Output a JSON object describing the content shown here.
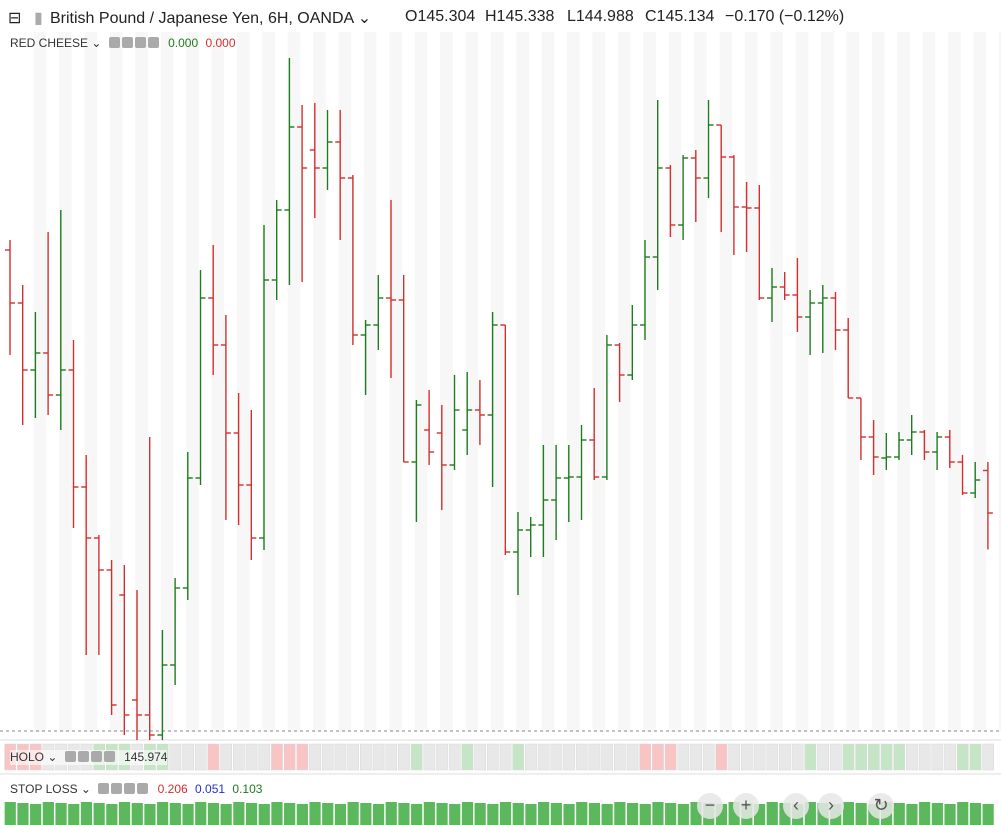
{
  "header": {
    "title": "British Pound / Japanese Yen, 6H, OANDA",
    "open": "O145.304",
    "high": "H145.338",
    "low": "L144.988",
    "close": "C145.134",
    "change": "−0.170 (−0.12%)"
  },
  "indicator": {
    "name": "RED CHEESE",
    "value1": "0.000",
    "value2": "0.000"
  },
  "holo": {
    "name": "HOLO",
    "value": "145.974",
    "cells": [
      "#f8c4c4",
      "#f8c4c4",
      "#f8c4c4",
      "#e8e8e8",
      "#e8e8e8",
      "#e8e8e8",
      "#e8e8e8",
      "#c6e5c6",
      "#c6e5c6",
      "#c6e5c6",
      "#e8e8e8",
      "#c6e5c6",
      "#c6e5c6",
      "#e8e8e8",
      "#e8e8e8",
      "#e8e8e8",
      "#f8c4c4",
      "#e8e8e8",
      "#e8e8e8",
      "#e8e8e8",
      "#e8e8e8",
      "#f8c4c4",
      "#f8c4c4",
      "#f8c4c4",
      "#e8e8e8",
      "#e8e8e8",
      "#e8e8e8",
      "#e8e8e8",
      "#e8e8e8",
      "#e8e8e8",
      "#e8e8e8",
      "#e8e8e8",
      "#c6e5c6",
      "#e8e8e8",
      "#e8e8e8",
      "#e8e8e8",
      "#c6e5c6",
      "#e8e8e8",
      "#e8e8e8",
      "#e8e8e8",
      "#c6e5c6",
      "#e8e8e8",
      "#e8e8e8",
      "#e8e8e8",
      "#e8e8e8",
      "#e8e8e8",
      "#e8e8e8",
      "#e8e8e8",
      "#e8e8e8",
      "#e8e8e8",
      "#f8c4c4",
      "#f8c4c4",
      "#f8c4c4",
      "#e8e8e8",
      "#e8e8e8",
      "#e8e8e8",
      "#f8c4c4",
      "#e8e8e8",
      "#e8e8e8",
      "#e8e8e8",
      "#e8e8e8",
      "#e8e8e8",
      "#e8e8e8",
      "#c6e5c6",
      "#e8e8e8",
      "#e8e8e8",
      "#c6e5c6",
      "#c6e5c6",
      "#c6e5c6",
      "#c6e5c6",
      "#c6e5c6",
      "#e8e8e8",
      "#e8e8e8",
      "#e8e8e8",
      "#e8e8e8",
      "#c6e5c6",
      "#c6e5c6",
      "#e8e8e8"
    ]
  },
  "stop_loss": {
    "name": "STOP LOSS",
    "value1": "0.206",
    "value2": "0.051",
    "value3": "0.103"
  },
  "chart_data": {
    "type": "ohlc",
    "up_color": "#1e7b1e",
    "down_color": "#d32f2f",
    "ylim": [
      144.226,
      147.046
    ],
    "open": [
      146.186,
      145.974,
      145.706,
      145.774,
      145.606,
      145.706,
      145.238,
      145.034,
      144.906,
      144.806,
      144.386,
      144.326,
      144.246,
      144.526,
      144.834,
      145.274,
      145.994,
      145.806,
      145.454,
      145.246,
      145.034,
      146.066,
      146.346,
      146.678,
      146.586,
      146.514,
      146.618,
      146.474,
      145.846,
      145.886,
      145.994,
      145.986,
      145.338,
      145.466,
      145.454,
      145.326,
      145.466,
      145.546,
      145.526,
      145.886,
      144.978,
      145.066,
      145.086,
      145.186,
      145.274,
      145.278,
      145.426,
      145.278,
      145.806,
      145.686,
      145.886,
      146.158,
      146.514,
      146.286,
      146.554,
      146.474,
      146.686,
      146.558,
      146.358,
      146.354,
      145.994,
      146.038,
      146.006,
      145.918,
      145.974,
      145.994,
      145.866,
      145.594,
      145.438,
      145.354,
      145.358,
      145.426,
      145.458,
      145.378,
      145.438,
      145.338,
      145.214,
      145.304
    ],
    "high": [
      146.226,
      146.046,
      145.938,
      146.258,
      146.346,
      145.826,
      145.366,
      145.046,
      144.946,
      144.926,
      144.826,
      145.438,
      144.666,
      144.874,
      145.378,
      146.106,
      146.206,
      145.926,
      145.614,
      145.546,
      146.286,
      146.386,
      146.954,
      146.766,
      146.774,
      146.746,
      146.746,
      146.486,
      145.906,
      146.086,
      146.386,
      146.086,
      145.586,
      145.626,
      145.566,
      145.686,
      145.698,
      145.666,
      145.938,
      145.886,
      145.138,
      145.118,
      145.406,
      145.406,
      145.406,
      145.486,
      145.634,
      145.846,
      145.814,
      145.966,
      146.226,
      146.786,
      146.526,
      146.566,
      146.586,
      146.786,
      146.686,
      146.566,
      146.458,
      146.446,
      146.114,
      146.098,
      146.154,
      146.026,
      146.046,
      146.018,
      145.914,
      145.594,
      145.506,
      145.454,
      145.458,
      145.526,
      145.466,
      145.458,
      145.466,
      145.366,
      145.338,
      145.338
    ],
    "low": [
      145.766,
      145.486,
      145.514,
      145.526,
      145.466,
      145.074,
      144.566,
      144.566,
      144.326,
      144.246,
      144.226,
      144.226,
      144.226,
      144.446,
      144.786,
      145.246,
      145.686,
      145.106,
      145.086,
      144.946,
      144.986,
      145.986,
      146.046,
      146.058,
      146.314,
      146.426,
      146.226,
      145.806,
      145.606,
      145.786,
      145.674,
      145.338,
      145.098,
      145.326,
      145.146,
      145.306,
      145.366,
      145.406,
      145.238,
      144.966,
      144.806,
      144.958,
      144.958,
      145.026,
      145.098,
      145.106,
      145.266,
      145.266,
      145.578,
      145.666,
      145.826,
      146.026,
      146.238,
      146.226,
      146.298,
      146.394,
      146.258,
      146.166,
      146.178,
      145.986,
      145.898,
      145.986,
      145.858,
      145.766,
      145.774,
      145.786,
      145.594,
      145.346,
      145.286,
      145.306,
      145.346,
      145.366,
      145.346,
      145.306,
      145.314,
      145.206,
      145.194,
      144.988
    ],
    "close": [
      145.974,
      145.706,
      145.774,
      145.606,
      145.706,
      145.238,
      145.034,
      144.906,
      144.366,
      144.326,
      144.326,
      144.246,
      144.526,
      144.834,
      145.274,
      145.994,
      145.806,
      145.454,
      145.246,
      145.034,
      146.066,
      146.346,
      146.678,
      146.514,
      146.514,
      146.618,
      146.474,
      145.846,
      145.886,
      145.994,
      145.986,
      145.338,
      145.566,
      145.378,
      145.326,
      145.546,
      145.546,
      145.526,
      145.886,
      144.978,
      145.066,
      145.086,
      145.186,
      145.274,
      145.278,
      145.426,
      145.278,
      145.806,
      145.686,
      145.886,
      146.158,
      146.514,
      146.286,
      146.554,
      146.474,
      146.686,
      146.558,
      146.358,
      146.354,
      145.994,
      146.038,
      146.006,
      145.918,
      145.974,
      145.994,
      145.866,
      145.594,
      145.438,
      145.358,
      145.358,
      145.426,
      145.458,
      145.378,
      145.438,
      145.338,
      145.214,
      145.266,
      145.134
    ]
  }
}
